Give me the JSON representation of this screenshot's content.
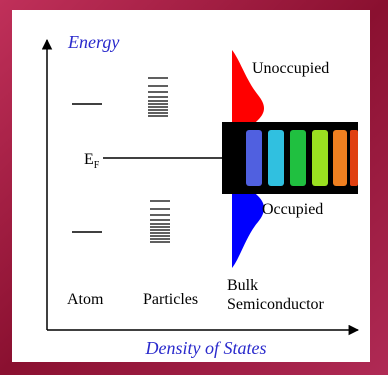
{
  "axes": {
    "y_title": "Energy",
    "x_title": "Density of States"
  },
  "fermi_level": {
    "symbol": "E",
    "subscript": "F"
  },
  "bands": {
    "upper": "Unoccupied",
    "lower": "Occupied"
  },
  "columns": [
    {
      "label": "Atom"
    },
    {
      "label": "Particles"
    },
    {
      "label_lines": [
        "Bulk",
        "Semiconductor"
      ]
    }
  ]
}
